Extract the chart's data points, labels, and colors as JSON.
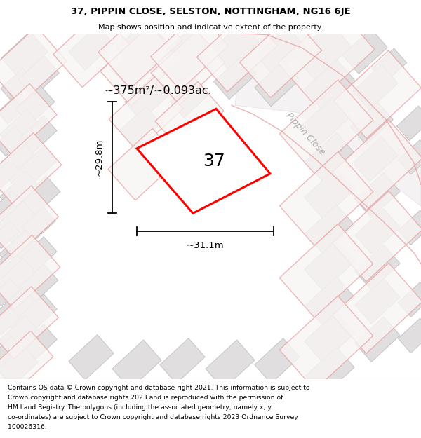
{
  "title": "37, PIPPIN CLOSE, SELSTON, NOTTINGHAM, NG16 6JE",
  "subtitle": "Map shows position and indicative extent of the property.",
  "footer_lines": [
    "Contains OS data © Crown copyright and database right 2021. This information is subject to",
    "Crown copyright and database rights 2023 and is reproduced with the permission of",
    "HM Land Registry. The polygons (including the associated geometry, namely x, y",
    "co-ordinates) are subject to Crown copyright and database rights 2023 Ordnance Survey",
    "100026316."
  ],
  "map_bg": "#f2f0f0",
  "area_label": "~375m²/~0.093ac.",
  "number_label": "37",
  "dim_width": "~31.1m",
  "dim_height": "~29.8m",
  "road_label": "Pippin Close",
  "property_color": "#ff0000",
  "building_fill": "#e0dede",
  "building_edge": "#c0bebe",
  "plot_edge": "#e8a0a0",
  "plot_fill": "#f8f4f4"
}
